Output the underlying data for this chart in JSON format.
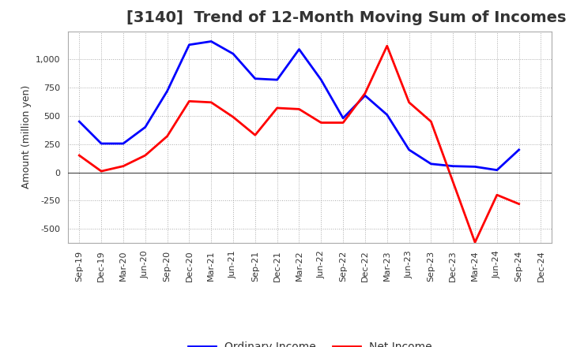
{
  "title": "[3140]  Trend of 12-Month Moving Sum of Incomes",
  "ylabel": "Amount (million yen)",
  "x_labels": [
    "Sep-19",
    "Dec-19",
    "Mar-20",
    "Jun-20",
    "Sep-20",
    "Dec-20",
    "Mar-21",
    "Jun-21",
    "Sep-21",
    "Dec-21",
    "Mar-22",
    "Jun-22",
    "Sep-22",
    "Dec-22",
    "Mar-23",
    "Jun-23",
    "Sep-23",
    "Dec-23",
    "Mar-24",
    "Jun-24",
    "Sep-24",
    "Dec-24"
  ],
  "ordinary_income": [
    450,
    255,
    255,
    400,
    720,
    1130,
    1160,
    1050,
    830,
    820,
    1090,
    820,
    480,
    680,
    510,
    200,
    75,
    55,
    50,
    20,
    200,
    null
  ],
  "net_income": [
    150,
    10,
    55,
    150,
    320,
    630,
    620,
    490,
    330,
    570,
    560,
    440,
    440,
    700,
    1120,
    620,
    450,
    null,
    -620,
    -200,
    -280,
    null
  ],
  "ordinary_color": "#0000FF",
  "net_color": "#FF0000",
  "ylim": [
    -625,
    1250
  ],
  "yticks": [
    -500,
    -250,
    0,
    250,
    500,
    750,
    1000
  ],
  "background_color": "#FFFFFF",
  "grid_color": "#AAAAAA",
  "legend_labels": [
    "Ordinary Income",
    "Net Income"
  ],
  "line_width": 2.0,
  "title_fontsize": 14,
  "title_color": "#333333",
  "tick_fontsize": 8,
  "ylabel_fontsize": 9,
  "legend_fontsize": 10
}
